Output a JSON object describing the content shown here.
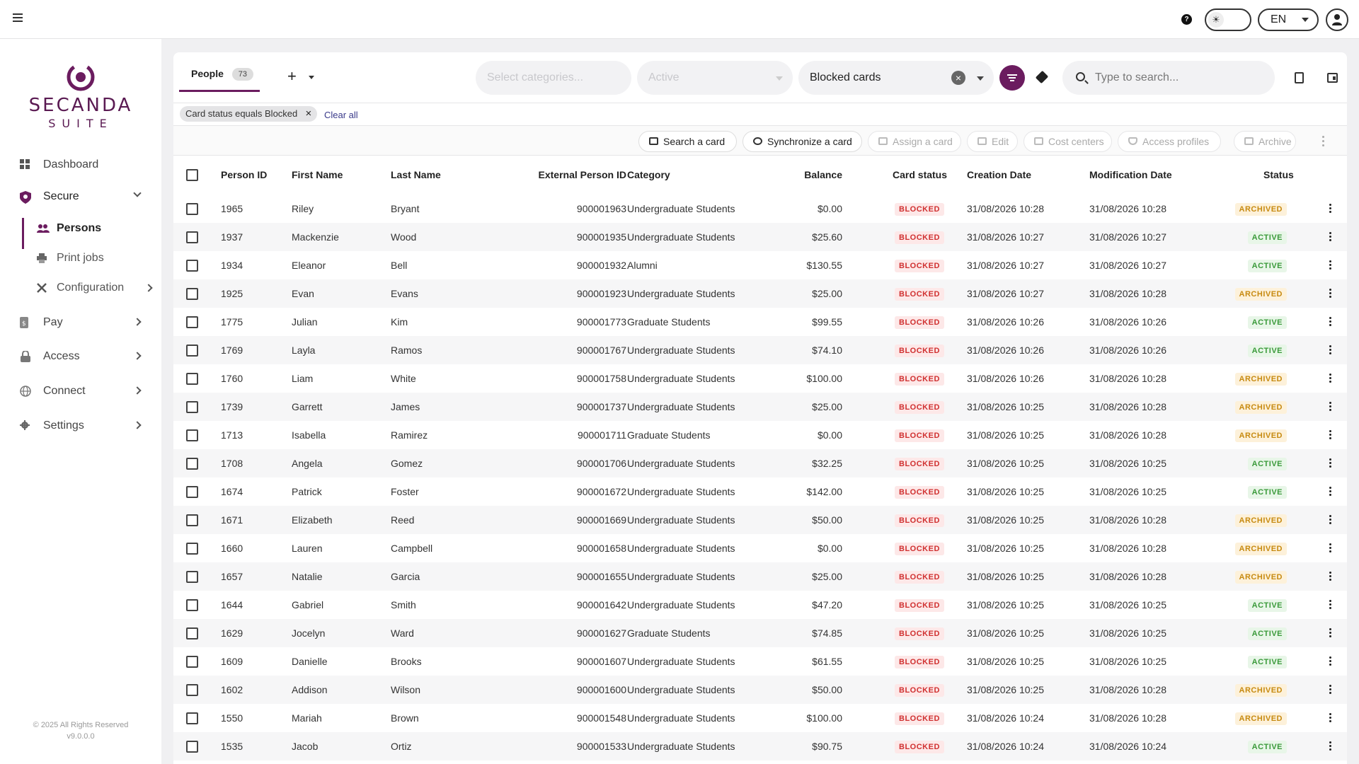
{
  "topbar": {
    "help_icon": "?",
    "theme_icon": "sun-icon",
    "language": "EN"
  },
  "sidebar": {
    "brand": "SECANDA",
    "brand_sub": "SUITE",
    "items": [
      {
        "label": "Dashboard",
        "icon": "grid-icon"
      },
      {
        "label": "Secure",
        "icon": "shield-icon"
      },
      {
        "label": "Persons",
        "icon": "people-icon"
      },
      {
        "label": "Print jobs",
        "icon": "printer-icon"
      },
      {
        "label": "Configuration",
        "icon": "tools-icon"
      },
      {
        "label": "Pay",
        "icon": "wallet-icon"
      },
      {
        "label": "Access",
        "icon": "lock-icon"
      },
      {
        "label": "Connect",
        "icon": "globe-icon"
      },
      {
        "label": "Settings",
        "icon": "gear-icon"
      }
    ],
    "footer_copyright": "© 2025 All Rights Reserved",
    "footer_version": "v9.0.0.0"
  },
  "tabs": {
    "people_label": "People",
    "people_count": "73",
    "add_label": "+"
  },
  "filters": {
    "categories_placeholder": "Select categories...",
    "status_value": "Active",
    "card_filter_value": "Blocked cards",
    "search_placeholder": "Type to search..."
  },
  "chips": {
    "chip_label": "Card status equals Blocked",
    "clear_all": "Clear all"
  },
  "actions": {
    "search_card": "Search a card",
    "sync_card": "Synchronize a card",
    "assign_card": "Assign a card",
    "edit": "Edit",
    "cost_centers": "Cost centers",
    "access_profiles": "Access profiles",
    "archive": "Archive"
  },
  "table": {
    "headers": {
      "person_id": "Person ID",
      "first_name": "First Name",
      "last_name": "Last Name",
      "external_id": "External Person ID",
      "category": "Category",
      "balance": "Balance",
      "card_status": "Card status",
      "creation_date": "Creation Date",
      "modification_date": "Modification Date",
      "status": "Status"
    },
    "rows": [
      {
        "id": "1965",
        "first": "Riley",
        "last": "Bryant",
        "ext": "900001963",
        "cat": "Undergraduate Students",
        "bal": "$0.00",
        "card": "BLOCKED",
        "created": "31/08/2026 10:28",
        "modified": "31/08/2026 10:28",
        "status": "ARCHIVED",
        "status_class": "archived"
      },
      {
        "id": "1937",
        "first": "Mackenzie",
        "last": "Wood",
        "ext": "900001935",
        "cat": "Undergraduate Students",
        "bal": "$25.60",
        "card": "BLOCKED",
        "created": "31/08/2026 10:27",
        "modified": "31/08/2026 10:27",
        "status": "ACTIVE",
        "status_class": "active"
      },
      {
        "id": "1934",
        "first": "Eleanor",
        "last": "Bell",
        "ext": "900001932",
        "cat": "Alumni",
        "bal": "$130.55",
        "card": "BLOCKED",
        "created": "31/08/2026 10:27",
        "modified": "31/08/2026 10:27",
        "status": "ACTIVE",
        "status_class": "active"
      },
      {
        "id": "1925",
        "first": "Evan",
        "last": "Evans",
        "ext": "900001923",
        "cat": "Undergraduate Students",
        "bal": "$25.00",
        "card": "BLOCKED",
        "created": "31/08/2026 10:27",
        "modified": "31/08/2026 10:28",
        "status": "ARCHIVED",
        "status_class": "archived"
      },
      {
        "id": "1775",
        "first": "Julian",
        "last": "Kim",
        "ext": "900001773",
        "cat": "Graduate Students",
        "bal": "$99.55",
        "card": "BLOCKED",
        "created": "31/08/2026 10:26",
        "modified": "31/08/2026 10:26",
        "status": "ACTIVE",
        "status_class": "active"
      },
      {
        "id": "1769",
        "first": "Layla",
        "last": "Ramos",
        "ext": "900001767",
        "cat": "Undergraduate Students",
        "bal": "$74.10",
        "card": "BLOCKED",
        "created": "31/08/2026 10:26",
        "modified": "31/08/2026 10:26",
        "status": "ACTIVE",
        "status_class": "active"
      },
      {
        "id": "1760",
        "first": "Liam",
        "last": "White",
        "ext": "900001758",
        "cat": "Undergraduate Students",
        "bal": "$100.00",
        "card": "BLOCKED",
        "created": "31/08/2026 10:26",
        "modified": "31/08/2026 10:28",
        "status": "ARCHIVED",
        "status_class": "archived"
      },
      {
        "id": "1739",
        "first": "Garrett",
        "last": "James",
        "ext": "900001737",
        "cat": "Undergraduate Students",
        "bal": "$25.00",
        "card": "BLOCKED",
        "created": "31/08/2026 10:25",
        "modified": "31/08/2026 10:28",
        "status": "ARCHIVED",
        "status_class": "archived"
      },
      {
        "id": "1713",
        "first": "Isabella",
        "last": "Ramirez",
        "ext": "900001711",
        "cat": "Graduate Students",
        "bal": "$0.00",
        "card": "BLOCKED",
        "created": "31/08/2026 10:25",
        "modified": "31/08/2026 10:28",
        "status": "ARCHIVED",
        "status_class": "archived"
      },
      {
        "id": "1708",
        "first": "Angela",
        "last": "Gomez",
        "ext": "900001706",
        "cat": "Undergraduate Students",
        "bal": "$32.25",
        "card": "BLOCKED",
        "created": "31/08/2026 10:25",
        "modified": "31/08/2026 10:25",
        "status": "ACTIVE",
        "status_class": "active"
      },
      {
        "id": "1674",
        "first": "Patrick",
        "last": "Foster",
        "ext": "900001672",
        "cat": "Undergraduate Students",
        "bal": "$142.00",
        "card": "BLOCKED",
        "created": "31/08/2026 10:25",
        "modified": "31/08/2026 10:25",
        "status": "ACTIVE",
        "status_class": "active"
      },
      {
        "id": "1671",
        "first": "Elizabeth",
        "last": "Reed",
        "ext": "900001669",
        "cat": "Undergraduate Students",
        "bal": "$50.00",
        "card": "BLOCKED",
        "created": "31/08/2026 10:25",
        "modified": "31/08/2026 10:28",
        "status": "ARCHIVED",
        "status_class": "archived"
      },
      {
        "id": "1660",
        "first": "Lauren",
        "last": "Campbell",
        "ext": "900001658",
        "cat": "Undergraduate Students",
        "bal": "$0.00",
        "card": "BLOCKED",
        "created": "31/08/2026 10:25",
        "modified": "31/08/2026 10:28",
        "status": "ARCHIVED",
        "status_class": "archived"
      },
      {
        "id": "1657",
        "first": "Natalie",
        "last": "Garcia",
        "ext": "900001655",
        "cat": "Undergraduate Students",
        "bal": "$25.00",
        "card": "BLOCKED",
        "created": "31/08/2026 10:25",
        "modified": "31/08/2026 10:28",
        "status": "ARCHIVED",
        "status_class": "archived"
      },
      {
        "id": "1644",
        "first": "Gabriel",
        "last": "Smith",
        "ext": "900001642",
        "cat": "Undergraduate Students",
        "bal": "$47.20",
        "card": "BLOCKED",
        "created": "31/08/2026 10:25",
        "modified": "31/08/2026 10:25",
        "status": "ACTIVE",
        "status_class": "active"
      },
      {
        "id": "1629",
        "first": "Jocelyn",
        "last": "Ward",
        "ext": "900001627",
        "cat": "Graduate Students",
        "bal": "$74.85",
        "card": "BLOCKED",
        "created": "31/08/2026 10:25",
        "modified": "31/08/2026 10:25",
        "status": "ACTIVE",
        "status_class": "active"
      },
      {
        "id": "1609",
        "first": "Danielle",
        "last": "Brooks",
        "ext": "900001607",
        "cat": "Undergraduate Students",
        "bal": "$61.55",
        "card": "BLOCKED",
        "created": "31/08/2026 10:25",
        "modified": "31/08/2026 10:25",
        "status": "ACTIVE",
        "status_class": "active"
      },
      {
        "id": "1602",
        "first": "Addison",
        "last": "Wilson",
        "ext": "900001600",
        "cat": "Undergraduate Students",
        "bal": "$50.00",
        "card": "BLOCKED",
        "created": "31/08/2026 10:25",
        "modified": "31/08/2026 10:28",
        "status": "ARCHIVED",
        "status_class": "archived"
      },
      {
        "id": "1550",
        "first": "Mariah",
        "last": "Brown",
        "ext": "900001548",
        "cat": "Undergraduate Students",
        "bal": "$100.00",
        "card": "BLOCKED",
        "created": "31/08/2026 10:24",
        "modified": "31/08/2026 10:28",
        "status": "ARCHIVED",
        "status_class": "archived"
      },
      {
        "id": "1535",
        "first": "Jacob",
        "last": "Ortiz",
        "ext": "900001533",
        "cat": "Undergraduate Students",
        "bal": "$90.75",
        "card": "BLOCKED",
        "created": "31/08/2026 10:24",
        "modified": "31/08/2026 10:24",
        "status": "ACTIVE",
        "status_class": "active"
      }
    ]
  },
  "colors": {
    "brand": "#6b1c5f",
    "blocked": "#d03030",
    "archived": "#c78a10",
    "active": "#3a9a3a"
  }
}
